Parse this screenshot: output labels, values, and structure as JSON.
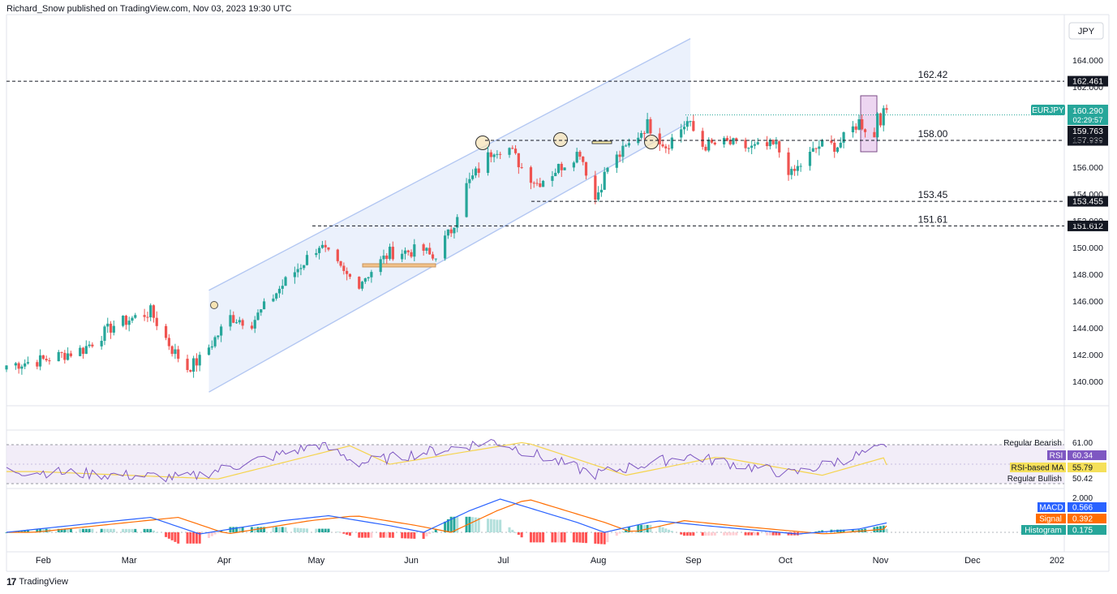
{
  "header": {
    "publisher_line": "Richard_Snow published on TradingView.com, Nov 03, 2023 19:30 UTC"
  },
  "footer": {
    "brand": "TradingView",
    "logo_glyph": "17"
  },
  "price_axis": {
    "currency": "JPY",
    "ticks": [
      "164.000",
      "162.000",
      "160.000",
      "158.000",
      "156.000",
      "154.000",
      "152.000",
      "150.000",
      "148.000",
      "146.000",
      "144.000",
      "142.000",
      "140.000"
    ]
  },
  "time_axis": {
    "labels": [
      "Feb",
      "Mar",
      "Apr",
      "May",
      "Jun",
      "Jul",
      "Aug",
      "Sep",
      "Oct",
      "Nov",
      "Dec",
      "202"
    ]
  },
  "symbol": {
    "name": "EURJPY",
    "price": "160.290",
    "countdown": "02:29:57",
    "color": "#26a69a"
  },
  "colors": {
    "up": "#26a69a",
    "down": "#ef5350",
    "channel": "#b3c7f2",
    "channel_fill": "#e8effc",
    "rsi": "#7e57c2",
    "rsi_ma": "#f5d44e",
    "macd": "#2962ff",
    "signal": "#ff6d00"
  },
  "levels": [
    {
      "value": 162.42,
      "text": "162.42",
      "badge": "162.461"
    },
    {
      "value": 158.0,
      "text": "158.00",
      "badge": "157.939"
    },
    {
      "value": 153.45,
      "text": "153.45",
      "badge": "153.455"
    },
    {
      "value": 151.61,
      "text": "151.61",
      "badge": "151.612"
    }
  ],
  "other_badge": {
    "value": 159.763,
    "text": "159.763"
  },
  "rsi_panel": {
    "regular_bearish": {
      "label": "Regular Bearish",
      "value": "61.00"
    },
    "rsi": {
      "label": "RSI",
      "value": "60.34"
    },
    "rsi_ma": {
      "label": "RSI-based MA",
      "value": "55.79"
    },
    "regular_bullish": {
      "label": "Regular Bullish",
      "value": "50.42"
    }
  },
  "macd_panel": {
    "top_tick": "2.000",
    "macd": {
      "label": "MACD",
      "value": "0.566"
    },
    "signal": {
      "label": "Signal",
      "value": "0.392"
    },
    "histogram": {
      "label": "Histogram",
      "value": "0.175"
    }
  },
  "chart_data": {
    "type": "candlestick",
    "symbol": "EURJPY",
    "currency": "JPY",
    "ylim": [
      138.2,
      165.6
    ],
    "close_anchors": [
      {
        "date": "2023-01-20",
        "close": 141.2
      },
      {
        "date": "2023-02-01",
        "close": 141.6
      },
      {
        "date": "2023-02-14",
        "close": 142.4
      },
      {
        "date": "2023-02-24",
        "close": 144.2
      },
      {
        "date": "2023-03-08",
        "close": 145.2
      },
      {
        "date": "2023-03-15",
        "close": 142.4
      },
      {
        "date": "2023-03-20",
        "close": 141.0
      },
      {
        "date": "2023-03-24",
        "close": 141.6
      },
      {
        "date": "2023-04-03",
        "close": 144.8
      },
      {
        "date": "2023-04-10",
        "close": 144.4
      },
      {
        "date": "2023-04-20",
        "close": 147.2
      },
      {
        "date": "2023-05-02",
        "close": 150.2
      },
      {
        "date": "2023-05-10",
        "close": 148.0
      },
      {
        "date": "2023-05-15",
        "close": 147.4
      },
      {
        "date": "2023-05-25",
        "close": 149.6
      },
      {
        "date": "2023-06-05",
        "close": 149.8
      },
      {
        "date": "2023-06-08",
        "close": 149.2
      },
      {
        "date": "2023-06-14",
        "close": 151.3
      },
      {
        "date": "2023-06-19",
        "close": 154.6
      },
      {
        "date": "2023-06-28",
        "close": 157.4
      },
      {
        "date": "2023-07-03",
        "close": 157.4
      },
      {
        "date": "2023-07-07",
        "close": 156.0
      },
      {
        "date": "2023-07-12",
        "close": 154.8
      },
      {
        "date": "2023-07-17",
        "close": 155.6
      },
      {
        "date": "2023-07-26",
        "close": 157.2
      },
      {
        "date": "2023-07-31",
        "close": 153.6
      },
      {
        "date": "2023-08-04",
        "close": 156.0
      },
      {
        "date": "2023-08-10",
        "close": 157.4
      },
      {
        "date": "2023-08-17",
        "close": 159.2
      },
      {
        "date": "2023-08-23",
        "close": 157.6
      },
      {
        "date": "2023-08-30",
        "close": 159.4
      },
      {
        "date": "2023-09-04",
        "close": 157.6
      },
      {
        "date": "2023-09-12",
        "close": 157.8
      },
      {
        "date": "2023-09-20",
        "close": 157.4
      },
      {
        "date": "2023-09-28",
        "close": 157.6
      },
      {
        "date": "2023-10-03",
        "close": 155.4
      },
      {
        "date": "2023-10-06",
        "close": 156.2
      },
      {
        "date": "2023-10-12",
        "close": 157.6
      },
      {
        "date": "2023-10-18",
        "close": 157.6
      },
      {
        "date": "2023-10-25",
        "close": 159.4
      },
      {
        "date": "2023-10-30",
        "close": 158.2
      },
      {
        "date": "2023-10-31",
        "close": 160.2
      },
      {
        "date": "2023-11-01",
        "close": 159.6
      },
      {
        "date": "2023-11-03",
        "close": 160.29
      }
    ],
    "channel": {
      "upper": [
        {
          "date": "2023-03-27",
          "price": 146.8
        },
        {
          "date": "2023-08-31",
          "price": 165.6
        }
      ],
      "lower": [
        {
          "date": "2023-03-27",
          "price": 139.2
        },
        {
          "date": "2023-08-31",
          "price": 159.4
        }
      ]
    },
    "rsi": {
      "levels": {
        "regular_bearish": 61.0,
        "regular_bullish": 50.42
      },
      "current": 60.34,
      "current_ma": 55.79,
      "anchors": [
        {
          "date": "2023-01-20",
          "value": 54
        },
        {
          "date": "2023-03-20",
          "value": 52
        },
        {
          "date": "2023-05-02",
          "value": 61
        },
        {
          "date": "2023-05-15",
          "value": 56
        },
        {
          "date": "2023-06-28",
          "value": 62
        },
        {
          "date": "2023-07-31",
          "value": 53
        },
        {
          "date": "2023-08-30",
          "value": 58
        },
        {
          "date": "2023-10-03",
          "value": 53
        },
        {
          "date": "2023-11-03",
          "value": 60.34
        }
      ]
    },
    "macd": {
      "current": 0.566,
      "signal": 0.392,
      "histogram": 0.175,
      "anchors": [
        {
          "date": "2023-01-20",
          "value": 0.0
        },
        {
          "date": "2023-02-20",
          "value": 0.6
        },
        {
          "date": "2023-03-08",
          "value": 0.9
        },
        {
          "date": "2023-03-24",
          "value": -0.1
        },
        {
          "date": "2023-04-20",
          "value": 0.7
        },
        {
          "date": "2023-05-05",
          "value": 1.0
        },
        {
          "date": "2023-05-25",
          "value": 0.4
        },
        {
          "date": "2023-06-05",
          "value": 0.0
        },
        {
          "date": "2023-06-20",
          "value": 1.3
        },
        {
          "date": "2023-06-30",
          "value": 2.0
        },
        {
          "date": "2023-07-25",
          "value": 0.6
        },
        {
          "date": "2023-08-03",
          "value": 0.0
        },
        {
          "date": "2023-08-20",
          "value": 0.7
        },
        {
          "date": "2023-09-05",
          "value": 0.4
        },
        {
          "date": "2023-10-05",
          "value": -0.1
        },
        {
          "date": "2023-10-25",
          "value": 0.2
        },
        {
          "date": "2023-11-03",
          "value": 0.566
        }
      ]
    }
  }
}
